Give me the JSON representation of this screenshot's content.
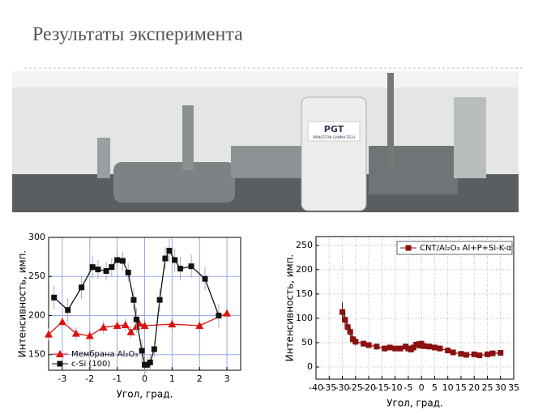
{
  "title": "Результаты эксперимента",
  "photo": {
    "logo": "PGT",
    "maker": "PRINCETON GAMMA-TECH"
  },
  "chart_data": [
    {
      "type": "line",
      "xlabel": "Угол, град.",
      "ylabel": "Интенсивность, имп.",
      "xlim": [
        -3.5,
        3.5
      ],
      "ylim": [
        130,
        300
      ],
      "xticks": [
        -3,
        -2,
        -1,
        0,
        1,
        2,
        3
      ],
      "yticks": [
        150,
        200,
        250,
        300
      ],
      "grid": true,
      "grid_color": "#9aa8e8",
      "legend": "lower left",
      "series": [
        {
          "name": "Мембрана Al₂O₃",
          "color": "#dd1111",
          "marker": "triangle",
          "x": [
            -3.5,
            -3,
            -2.5,
            -2,
            -1.5,
            -1,
            -0.7,
            -0.5,
            -0.3,
            -0.2,
            0,
            1,
            2,
            3
          ],
          "values": [
            176,
            192,
            177,
            174,
            185,
            187,
            188,
            179,
            186,
            190,
            187,
            189,
            187,
            203
          ],
          "errors": [
            8,
            8,
            8,
            8,
            8,
            8,
            8,
            8,
            8,
            8,
            8,
            8,
            8,
            8
          ]
        },
        {
          "name": "c-Si (100)",
          "color": "#111111",
          "marker": "square",
          "x": [
            -3.3,
            -2.8,
            -2.3,
            -1.9,
            -1.7,
            -1.4,
            -1.2,
            -1.0,
            -0.8,
            -0.6,
            -0.4,
            -0.3,
            -0.1,
            0,
            0.1,
            0.2,
            0.35,
            0.55,
            0.75,
            0.9,
            1.1,
            1.3,
            1.7,
            2.2,
            2.7
          ],
          "values": [
            223,
            207,
            236,
            262,
            259,
            257,
            262,
            271,
            270,
            255,
            220,
            195,
            155,
            137,
            137,
            140,
            157,
            220,
            273,
            283,
            271,
            260,
            263,
            247,
            200
          ],
          "errors": [
            15,
            15,
            15,
            15,
            12,
            12,
            12,
            12,
            12,
            12,
            15,
            15,
            15,
            15,
            10,
            10,
            10,
            15,
            15,
            15,
            15,
            15,
            15,
            15,
            15
          ]
        }
      ]
    },
    {
      "type": "line",
      "xlabel": "Угол, град.",
      "ylabel": "Интенсивность, имп.",
      "xlim": [
        -40,
        35
      ],
      "ylim": [
        -25,
        268
      ],
      "xticks": [
        -40,
        -35,
        -30,
        -25,
        -20,
        -15,
        -10,
        -5,
        0,
        5,
        10,
        15,
        20,
        25,
        30,
        35
      ],
      "yticks": [
        0,
        50,
        100,
        150,
        200,
        250
      ],
      "grid": true,
      "grid_color": "#bbbbbb",
      "legend": "upper right",
      "series": [
        {
          "name": "CNT/Al₂O₃ Al+P+Si-K-α",
          "color": "#8b1010",
          "marker": "square",
          "x": [
            -30,
            -29,
            -28,
            -27,
            -26,
            -25,
            -22,
            -20,
            -17,
            -14,
            -12,
            -10,
            -8,
            -6,
            -5,
            -4,
            -3,
            -2,
            -1,
            -0.5,
            0,
            1,
            3,
            5,
            7,
            10,
            12,
            15,
            17,
            20,
            22,
            25,
            27,
            30
          ],
          "values": [
            113,
            97,
            82,
            72,
            57,
            52,
            48,
            45,
            42,
            38,
            40,
            38,
            38,
            42,
            38,
            36,
            40,
            46,
            47,
            44,
            48,
            43,
            42,
            40,
            38,
            34,
            30,
            27,
            25,
            26,
            24,
            26,
            28,
            29
          ],
          "errors": [
            20,
            15,
            12,
            10,
            8,
            8,
            6,
            6,
            6,
            6,
            6,
            6,
            6,
            6,
            6,
            6,
            6,
            6,
            6,
            6,
            6,
            6,
            6,
            6,
            6,
            5,
            5,
            5,
            4,
            4,
            4,
            4,
            4,
            4
          ]
        }
      ]
    }
  ]
}
